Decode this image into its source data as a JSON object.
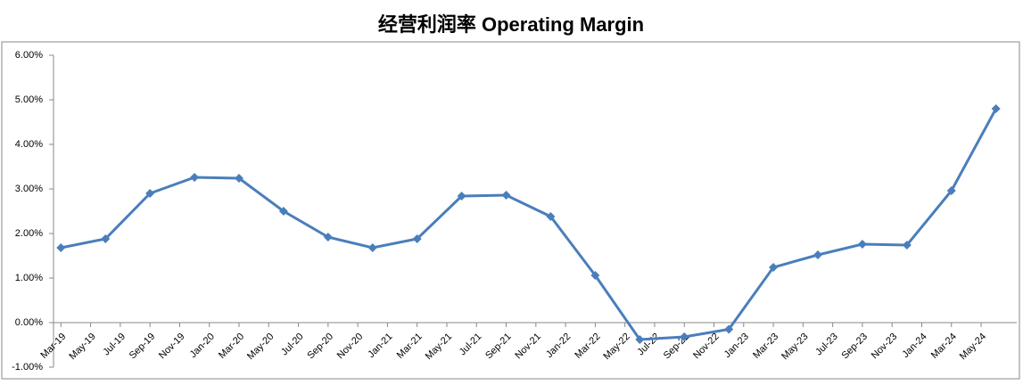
{
  "chart_data": {
    "type": "line",
    "title": "经营利润率 Operating Margin",
    "x": [
      "2019-03",
      "2019-06",
      "2019-09",
      "2019-12",
      "2020-03",
      "2020-06",
      "2020-09",
      "2020-12",
      "2021-03",
      "2021-06",
      "2021-09",
      "2021-12",
      "2022-03",
      "2022-06",
      "2022-09",
      "2022-12",
      "2023-03",
      "2023-06",
      "2023-09",
      "2023-12",
      "2024-03",
      "2024-06"
    ],
    "series": [
      {
        "name": "Operating Margin",
        "color": "#4a7ebb",
        "values": [
          1.68,
          1.88,
          2.9,
          3.26,
          3.24,
          2.5,
          1.92,
          1.68,
          1.88,
          2.84,
          2.86,
          2.38,
          1.06,
          -0.38,
          -0.32,
          -0.15,
          1.24,
          1.52,
          1.76,
          1.74,
          2.96,
          4.8
        ]
      }
    ],
    "xlim": [
      "2019-03",
      "2024-06"
    ],
    "xticks": [
      {
        "value": "2019-03",
        "label": "Mar-19"
      },
      {
        "value": "2019-05",
        "label": "May-19"
      },
      {
        "value": "2019-07",
        "label": "Jul-19"
      },
      {
        "value": "2019-09",
        "label": "Sep-19"
      },
      {
        "value": "2019-11",
        "label": "Nov-19"
      },
      {
        "value": "2020-01",
        "label": "Jan-20"
      },
      {
        "value": "2020-03",
        "label": "Mar-20"
      },
      {
        "value": "2020-05",
        "label": "May-20"
      },
      {
        "value": "2020-07",
        "label": "Jul-20"
      },
      {
        "value": "2020-09",
        "label": "Sep-20"
      },
      {
        "value": "2020-11",
        "label": "Nov-20"
      },
      {
        "value": "2021-01",
        "label": "Jan-21"
      },
      {
        "value": "2021-03",
        "label": "Mar-21"
      },
      {
        "value": "2021-05",
        "label": "May-21"
      },
      {
        "value": "2021-07",
        "label": "Jul-21"
      },
      {
        "value": "2021-09",
        "label": "Sep-21"
      },
      {
        "value": "2021-11",
        "label": "Nov-21"
      },
      {
        "value": "2022-01",
        "label": "Jan-22"
      },
      {
        "value": "2022-03",
        "label": "Mar-22"
      },
      {
        "value": "2022-05",
        "label": "May-22"
      },
      {
        "value": "2022-07",
        "label": "Jul-22"
      },
      {
        "value": "2022-09",
        "label": "Sep-22"
      },
      {
        "value": "2022-11",
        "label": "Nov-22"
      },
      {
        "value": "2023-01",
        "label": "Jan-23"
      },
      {
        "value": "2023-03",
        "label": "Mar-23"
      },
      {
        "value": "2023-05",
        "label": "May-23"
      },
      {
        "value": "2023-07",
        "label": "Jul-23"
      },
      {
        "value": "2023-09",
        "label": "Sep-23"
      },
      {
        "value": "2023-11",
        "label": "Nov-23"
      },
      {
        "value": "2024-01",
        "label": "Jan-24"
      },
      {
        "value": "2024-03",
        "label": "Mar-24"
      },
      {
        "value": "2024-05",
        "label": "May-24"
      }
    ],
    "ylim": [
      -1,
      6
    ],
    "yticks": [
      {
        "value": -1,
        "label": "-1.00%"
      },
      {
        "value": 0,
        "label": "0.00%"
      },
      {
        "value": 1,
        "label": "1.00%"
      },
      {
        "value": 2,
        "label": "2.00%"
      },
      {
        "value": 3,
        "label": "3.00%"
      },
      {
        "value": 4,
        "label": "4.00%"
      },
      {
        "value": 5,
        "label": "5.00%"
      },
      {
        "value": 6,
        "label": "6.00%"
      }
    ],
    "grid": false
  }
}
